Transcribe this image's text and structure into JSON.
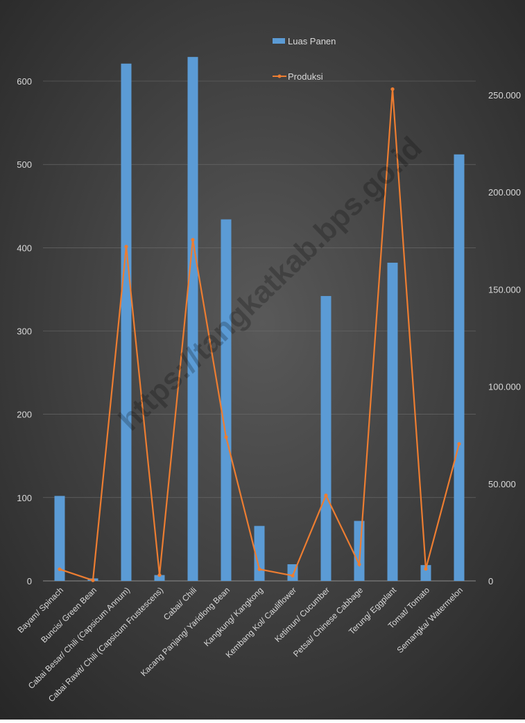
{
  "colors": {
    "bar": "#5b9bd5",
    "line": "#ed7d31",
    "background_center": "#595959",
    "background_edge": "#262626",
    "text": "#d9d9d9",
    "grid": "#6e6e6e"
  },
  "chart_data": {
    "type": "bar",
    "categories": [
      "Bayam/ Spinach",
      "Buncis/ Green Bean",
      "Cabai Besar/ Chili (Capsicum Annum)",
      "Cabai Rawit/ Chili (Capsicum Frustescens)",
      "Cabai/ Chili",
      "Kacang Panjang/ Yaridlong Bean",
      "Kangkung/ Kangkong",
      "Kembang Kol/ Cauliflower",
      "Ketimun/ Cucumber",
      "Petsai/ Chinese Cabbage",
      "Terung/ Eggplant",
      "Tomat/ Tomato",
      "Semangka/ Watermelon"
    ],
    "series": [
      {
        "name": "Luas Panen",
        "type": "bar",
        "axis": "left",
        "values": [
          102,
          3,
          621,
          7,
          629,
          434,
          66,
          20,
          342,
          72,
          382,
          19,
          512
        ]
      },
      {
        "name": "Produksi",
        "type": "line",
        "axis": "right",
        "values": [
          6000,
          300,
          172000,
          3000,
          175500,
          74000,
          6000,
          2700,
          44000,
          8500,
          253000,
          6200,
          70500
        ]
      }
    ],
    "y_left": {
      "min": 0,
      "max": 600,
      "ticks": [
        "0",
        "100",
        "200",
        "300",
        "400",
        "500",
        "600"
      ]
    },
    "y_right": {
      "min": 0,
      "max": 250000,
      "ticks": [
        "0",
        "50.000",
        "100.000",
        "150.000",
        "200.000",
        "250.000"
      ]
    },
    "gridlines": true,
    "legend_position": "top-center",
    "watermark": "https://tangkatkab.bps.go.id"
  }
}
